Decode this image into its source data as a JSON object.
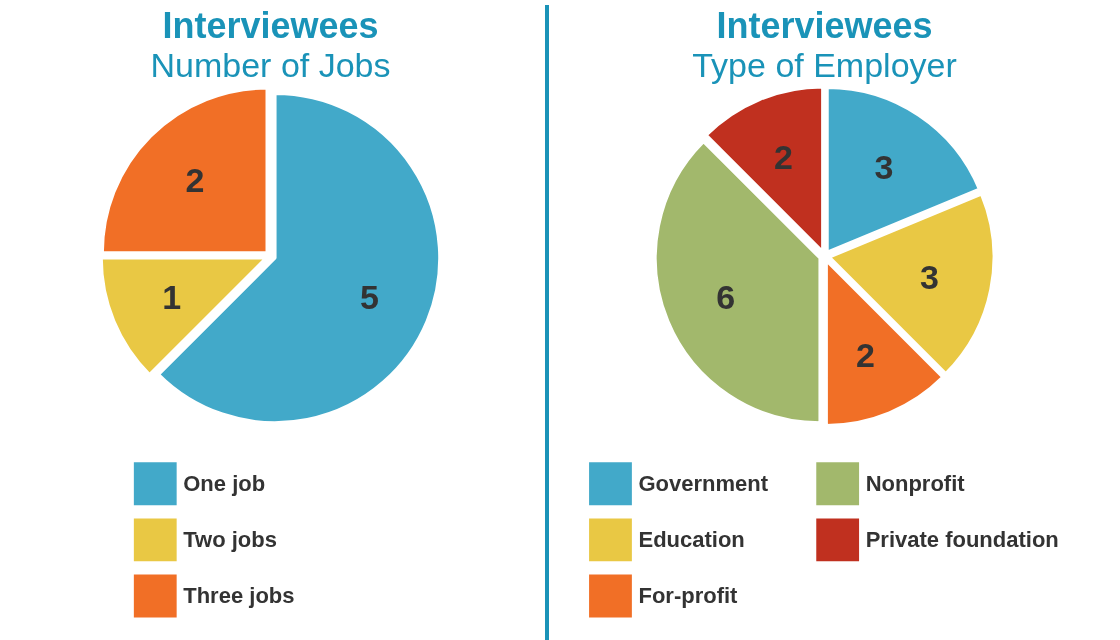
{
  "chart_data": [
    {
      "type": "pie",
      "title": "Interviewees",
      "subtitle": "Number of Jobs",
      "categories": [
        "One job",
        "Two jobs",
        "Three jobs"
      ],
      "values": [
        5,
        1,
        2
      ],
      "colors": [
        "#42a9c9",
        "#e9c844",
        "#f16f26"
      ],
      "legend": "bottom",
      "data_labels": true
    },
    {
      "type": "pie",
      "title": "Interviewees",
      "subtitle": "Type of Employer",
      "categories": [
        "Government",
        "Education",
        "For-profit",
        "Nonprofit",
        "Private foundation"
      ],
      "values": [
        3,
        3,
        2,
        6,
        2
      ],
      "colors": [
        "#42a9c9",
        "#e9c844",
        "#f16f26",
        "#a2b86c",
        "#c0301f"
      ],
      "legend": "bottom",
      "data_labels": true
    }
  ]
}
